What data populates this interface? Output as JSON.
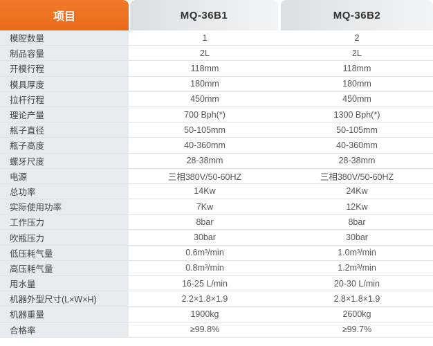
{
  "header": {
    "item": "项目",
    "model1": "MQ-36B1",
    "model2": "MQ-36B2"
  },
  "colors": {
    "accent": "#ec6f1f",
    "label_bg": "#e7ebee"
  },
  "rows": [
    {
      "label": "模腔数量",
      "v1": "1",
      "v2": "2"
    },
    {
      "label": "制品容量",
      "v1": "2L",
      "v2": "2L"
    },
    {
      "label": "开模行程",
      "v1": "118mm",
      "v2": "118mm"
    },
    {
      "label": "模具厚度",
      "v1": "180mm",
      "v2": "180mm"
    },
    {
      "label": "拉杆行程",
      "v1": "450mm",
      "v2": "450mm"
    },
    {
      "label": "理论产量",
      "v1": "700 Bph(*)",
      "v2": "1300 Bph(*)"
    },
    {
      "label": "瓶子直径",
      "v1": "50-105mm",
      "v2": "50-105mm"
    },
    {
      "label": "瓶子高度",
      "v1": "40-360mm",
      "v2": "40-360mm"
    },
    {
      "label": "螺牙尺度",
      "v1": "28-38mm",
      "v2": "28-38mm"
    },
    {
      "label": "电源",
      "v1": "三相380V/50-60HZ",
      "v2": "三相380V/50-60HZ"
    },
    {
      "label": "总功率",
      "v1": "14Kw",
      "v2": "24Kw"
    },
    {
      "label": "实际使用功率",
      "v1": "7Kw",
      "v2": "12Kw"
    },
    {
      "label": "工作压力",
      "v1": "8bar",
      "v2": "8bar"
    },
    {
      "label": "吹瓶压力",
      "v1": "30bar",
      "v2": "30bar"
    },
    {
      "label": "低压耗气量",
      "v1": "0.6m³/min",
      "v2": "1.0m³/min"
    },
    {
      "label": "高压耗气量",
      "v1": "0.8m³/min",
      "v2": "1.2m³/min"
    },
    {
      "label": "用水量",
      "v1": "16-25 L/min",
      "v2": "20-30 L/min"
    },
    {
      "label": "机器外型尺寸(L×W×H)",
      "v1": "2.2×1.8×1.9",
      "v2": "2.8×1.8×1.9"
    },
    {
      "label": "机器重量",
      "v1": "1900kg",
      "v2": "2600kg"
    },
    {
      "label": "合格率",
      "v1": "≥99.8%",
      "v2": "≥99.7%"
    }
  ]
}
